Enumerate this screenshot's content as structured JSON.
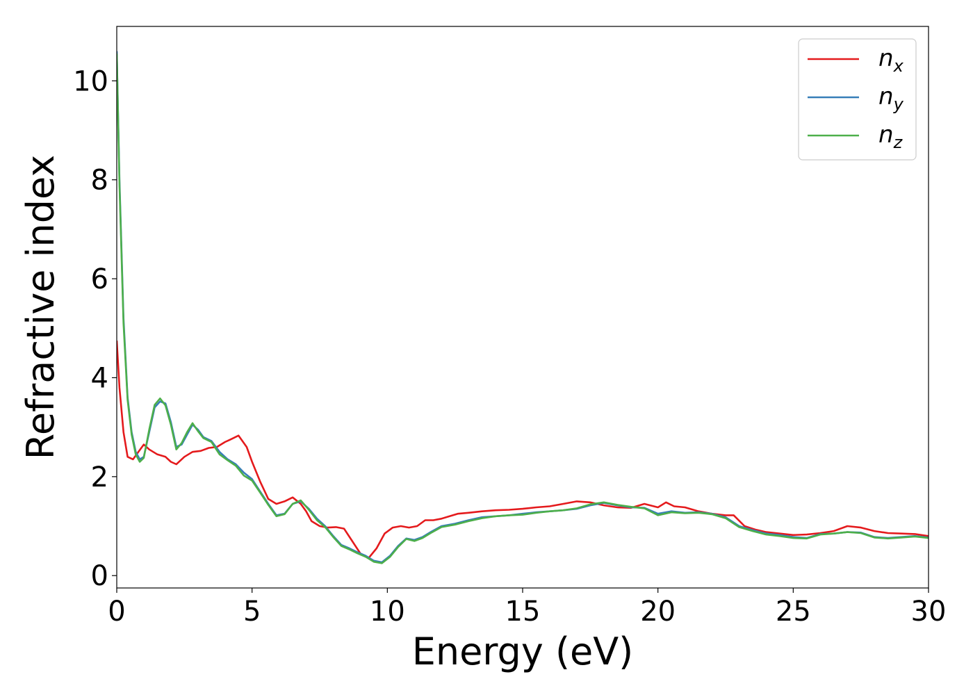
{
  "chart_data": {
    "type": "line",
    "title": "",
    "xlabel": "Energy (eV)",
    "ylabel": "Refractive index",
    "xlim": [
      0,
      30
    ],
    "ylim": [
      -0.25,
      11.1
    ],
    "xticks": [
      0,
      5,
      10,
      15,
      20,
      25,
      30
    ],
    "yticks": [
      0,
      2,
      4,
      6,
      8,
      10
    ],
    "grid": false,
    "legend_position": "top-right",
    "series": [
      {
        "name": "n",
        "sub": "x",
        "color": "#e41a1c",
        "x": [
          0,
          0.1,
          0.25,
          0.4,
          0.6,
          0.8,
          1.0,
          1.2,
          1.5,
          1.8,
          2.0,
          2.2,
          2.5,
          2.8,
          3.1,
          3.4,
          3.7,
          4.0,
          4.2,
          4.5,
          4.8,
          5.0,
          5.3,
          5.6,
          5.9,
          6.2,
          6.5,
          6.8,
          7.0,
          7.2,
          7.5,
          7.8,
          8.1,
          8.4,
          8.7,
          9.0,
          9.3,
          9.6,
          9.9,
          10.2,
          10.5,
          10.8,
          11.1,
          11.4,
          11.7,
          12.0,
          12.3,
          12.6,
          13.0,
          13.5,
          14.0,
          14.5,
          15.0,
          15.5,
          16.0,
          16.5,
          17.0,
          17.5,
          18.0,
          18.5,
          19.0,
          19.5,
          20.0,
          20.3,
          20.6,
          21.0,
          21.5,
          22.0,
          22.5,
          22.8,
          23.2,
          23.6,
          24.0,
          24.5,
          25.0,
          25.5,
          26.0,
          26.5,
          27.0,
          27.5,
          28.0,
          28.5,
          29.0,
          29.5,
          30.0
        ],
        "y": [
          4.75,
          3.8,
          2.9,
          2.4,
          2.35,
          2.5,
          2.65,
          2.55,
          2.45,
          2.4,
          2.3,
          2.25,
          2.4,
          2.5,
          2.52,
          2.58,
          2.6,
          2.7,
          2.75,
          2.83,
          2.6,
          2.3,
          1.9,
          1.55,
          1.45,
          1.5,
          1.58,
          1.45,
          1.3,
          1.1,
          1.0,
          0.97,
          0.98,
          0.95,
          0.7,
          0.45,
          0.35,
          0.55,
          0.85,
          0.97,
          1.0,
          0.97,
          1.0,
          1.12,
          1.12,
          1.15,
          1.2,
          1.25,
          1.27,
          1.3,
          1.32,
          1.33,
          1.35,
          1.38,
          1.4,
          1.45,
          1.5,
          1.48,
          1.42,
          1.38,
          1.37,
          1.45,
          1.38,
          1.48,
          1.4,
          1.38,
          1.3,
          1.25,
          1.22,
          1.22,
          1.0,
          0.93,
          0.88,
          0.85,
          0.82,
          0.83,
          0.86,
          0.9,
          1.0,
          0.97,
          0.9,
          0.86,
          0.85,
          0.84,
          0.8
        ]
      },
      {
        "name": "n",
        "sub": "y",
        "color": "#377eb8",
        "x": [
          0,
          0.1,
          0.25,
          0.4,
          0.55,
          0.7,
          0.85,
          1.0,
          1.2,
          1.4,
          1.6,
          1.8,
          2.0,
          2.2,
          2.4,
          2.6,
          2.8,
          3.0,
          3.2,
          3.5,
          3.8,
          4.1,
          4.4,
          4.7,
          5.0,
          5.3,
          5.6,
          5.9,
          6.2,
          6.5,
          6.8,
          7.1,
          7.4,
          7.7,
          8.0,
          8.3,
          8.6,
          8.9,
          9.2,
          9.5,
          9.8,
          10.1,
          10.4,
          10.7,
          11.0,
          11.3,
          11.6,
          12.0,
          12.5,
          13.0,
          13.5,
          14.0,
          14.5,
          15.0,
          15.5,
          16.0,
          16.5,
          17.0,
          17.5,
          18.0,
          18.5,
          19.0,
          19.5,
          20.0,
          20.5,
          21.0,
          21.5,
          22.0,
          22.5,
          23.0,
          23.5,
          24.0,
          24.5,
          25.0,
          25.5,
          26.0,
          26.5,
          27.0,
          27.5,
          28.0,
          28.5,
          29.0,
          29.5,
          30.0
        ],
        "y": [
          10.6,
          8.0,
          5.2,
          3.6,
          2.9,
          2.5,
          2.35,
          2.4,
          2.9,
          3.4,
          3.52,
          3.48,
          3.1,
          2.6,
          2.65,
          2.85,
          3.05,
          2.95,
          2.8,
          2.72,
          2.5,
          2.35,
          2.25,
          2.08,
          1.95,
          1.7,
          1.45,
          1.22,
          1.25,
          1.45,
          1.5,
          1.35,
          1.15,
          1.0,
          0.8,
          0.62,
          0.55,
          0.47,
          0.4,
          0.3,
          0.27,
          0.4,
          0.6,
          0.75,
          0.72,
          0.78,
          0.88,
          1.0,
          1.05,
          1.12,
          1.18,
          1.2,
          1.22,
          1.25,
          1.28,
          1.3,
          1.32,
          1.35,
          1.42,
          1.47,
          1.42,
          1.38,
          1.37,
          1.25,
          1.3,
          1.27,
          1.28,
          1.25,
          1.18,
          1.0,
          0.92,
          0.85,
          0.82,
          0.78,
          0.76,
          0.84,
          0.85,
          0.88,
          0.87,
          0.78,
          0.76,
          0.78,
          0.8,
          0.77
        ]
      },
      {
        "name": "n",
        "sub": "z",
        "color": "#4daf4a",
        "x": [
          0,
          0.1,
          0.25,
          0.4,
          0.55,
          0.7,
          0.85,
          1.0,
          1.2,
          1.4,
          1.6,
          1.8,
          2.0,
          2.2,
          2.4,
          2.6,
          2.8,
          3.0,
          3.2,
          3.5,
          3.8,
          4.1,
          4.4,
          4.7,
          5.0,
          5.3,
          5.6,
          5.9,
          6.2,
          6.5,
          6.8,
          7.1,
          7.4,
          7.7,
          8.0,
          8.3,
          8.6,
          8.9,
          9.2,
          9.5,
          9.8,
          10.1,
          10.4,
          10.7,
          11.0,
          11.3,
          11.6,
          12.0,
          12.5,
          13.0,
          13.5,
          14.0,
          14.5,
          15.0,
          15.5,
          16.0,
          16.5,
          17.0,
          17.5,
          18.0,
          18.5,
          19.0,
          19.5,
          20.0,
          20.5,
          21.0,
          21.5,
          22.0,
          22.5,
          23.0,
          23.5,
          24.0,
          24.5,
          25.0,
          25.5,
          26.0,
          26.5,
          27.0,
          27.5,
          28.0,
          28.5,
          29.0,
          29.5,
          30.0
        ],
        "y": [
          10.55,
          7.9,
          5.1,
          3.55,
          2.85,
          2.45,
          2.3,
          2.38,
          2.95,
          3.45,
          3.58,
          3.44,
          3.05,
          2.55,
          2.68,
          2.9,
          3.08,
          2.92,
          2.78,
          2.7,
          2.45,
          2.33,
          2.22,
          2.02,
          1.92,
          1.68,
          1.43,
          1.2,
          1.24,
          1.45,
          1.52,
          1.33,
          1.12,
          0.98,
          0.78,
          0.6,
          0.53,
          0.45,
          0.38,
          0.28,
          0.25,
          0.38,
          0.58,
          0.74,
          0.7,
          0.76,
          0.86,
          0.98,
          1.03,
          1.1,
          1.16,
          1.2,
          1.22,
          1.23,
          1.27,
          1.3,
          1.32,
          1.36,
          1.44,
          1.48,
          1.43,
          1.39,
          1.36,
          1.22,
          1.28,
          1.26,
          1.27,
          1.24,
          1.16,
          0.98,
          0.9,
          0.83,
          0.8,
          0.76,
          0.75,
          0.83,
          0.85,
          0.88,
          0.86,
          0.77,
          0.75,
          0.77,
          0.79,
          0.76
        ]
      }
    ]
  }
}
